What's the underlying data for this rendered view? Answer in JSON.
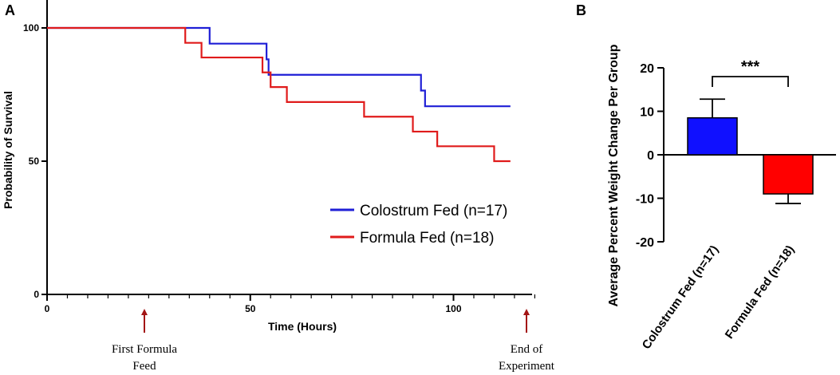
{
  "chart_data": [
    {
      "panel": "A",
      "type": "line",
      "subtype": "kaplan-meier step",
      "xlabel": "Time (Hours)",
      "ylabel": "Probability of Survival",
      "xlim": [
        0,
        120
      ],
      "ylim": [
        0,
        100
      ],
      "x_ticks": [
        0,
        50,
        100
      ],
      "y_ticks": [
        0,
        50,
        100
      ],
      "legend_position": "bottom-right",
      "series": [
        {
          "name": "Colostrum Fed (n=17)",
          "color": "#1f1fd6",
          "steps": [
            [
              0,
              100
            ],
            [
              40,
              94.1
            ],
            [
              54,
              88.2
            ],
            [
              54.5,
              82.4
            ],
            [
              92,
              76.5
            ],
            [
              93,
              70.6
            ],
            [
              114,
              70.6
            ]
          ]
        },
        {
          "name": "Formula Fed (n=18)",
          "color": "#e01b1b",
          "steps": [
            [
              0,
              100
            ],
            [
              34,
              94.4
            ],
            [
              38,
              88.9
            ],
            [
              53,
              83.3
            ],
            [
              55,
              77.8
            ],
            [
              59,
              72.2
            ],
            [
              78,
              66.7
            ],
            [
              90,
              61.1
            ],
            [
              96,
              55.6
            ],
            [
              110,
              50
            ],
            [
              114,
              50
            ]
          ]
        }
      ],
      "annotations": [
        {
          "x": 24,
          "label_line1": "First Formula",
          "label_line2": "Feed",
          "color": "#a31515"
        },
        {
          "x": 118,
          "label_line1": "End of",
          "label_line2": "Experiment",
          "color": "#a31515"
        }
      ]
    },
    {
      "panel": "B",
      "type": "bar",
      "ylabel": "Average Percent Weight Change Per Group",
      "categories": [
        "Colostrum Fed (n=17)",
        "Formula Fed (n=18)"
      ],
      "values": [
        8.5,
        -9
      ],
      "errors": [
        4.3,
        2.2
      ],
      "colors": [
        "#1010ff",
        "#ff0000"
      ],
      "ylim": [
        -20,
        20
      ],
      "y_ticks": [
        20,
        10,
        0,
        -10,
        -20
      ],
      "significance": "***"
    }
  ],
  "labels": {
    "panel_a": "A",
    "panel_b": "B"
  }
}
